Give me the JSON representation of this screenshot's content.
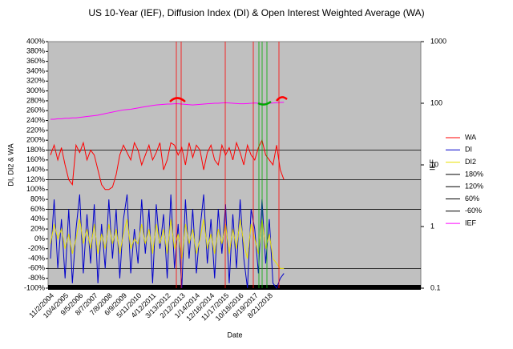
{
  "chart_data": {
    "type": "line",
    "title": "US 10-Year (IEF), Diffusion Index (DI) & Open Interest Weighted Average (WA)",
    "x_label": "Date",
    "y_label": "DI, DI2 & WA",
    "y2_label": "IEF",
    "categories": [
      "11/2/2004",
      null,
      null,
      null,
      "10/4/2005",
      null,
      null,
      null,
      "9/5/2006",
      null,
      null,
      null,
      "8/7/2007",
      null,
      null,
      null,
      "7/8/2008",
      null,
      null,
      null,
      "6/9/2009",
      null,
      null,
      null,
      "5/11/2010",
      null,
      null,
      null,
      "4/12/2011",
      null,
      null,
      null,
      "3/13/2012",
      null,
      null,
      null,
      "2/12/2013",
      null,
      null,
      null,
      "1/14/2014",
      null,
      null,
      null,
      "12/16/2014",
      null,
      null,
      null,
      "11/17/2015",
      null,
      null,
      null,
      "10/18/2016",
      null,
      null,
      null,
      "9/19/2017",
      null,
      null,
      null,
      "8/21/2018",
      null,
      null,
      null,
      null
    ],
    "series": [
      {
        "name": "WA",
        "color": "#ff0000",
        "values": [
          170,
          190,
          160,
          185,
          150,
          120,
          110,
          190,
          175,
          195,
          160,
          180,
          170,
          140,
          110,
          100,
          100,
          105,
          130,
          170,
          190,
          175,
          160,
          195,
          180,
          150,
          170,
          190,
          160,
          175,
          195,
          140,
          160,
          195,
          190,
          170,
          185,
          150,
          195,
          165,
          190,
          180,
          140,
          175,
          190,
          160,
          150,
          190,
          170,
          185,
          160,
          195,
          175,
          150,
          190,
          170,
          160,
          185,
          200,
          170,
          160,
          150,
          190,
          140,
          120
        ]
      },
      {
        "name": "DI",
        "color": "#0000cc",
        "values": [
          -40,
          80,
          -60,
          40,
          -80,
          60,
          -90,
          20,
          90,
          -70,
          50,
          -50,
          70,
          -90,
          30,
          -60,
          80,
          -40,
          60,
          -80,
          40,
          90,
          -70,
          20,
          -50,
          80,
          -30,
          60,
          -90,
          70,
          -20,
          50,
          -80,
          90,
          -60,
          30,
          -100,
          80,
          -40,
          60,
          -70,
          20,
          90,
          -50,
          40,
          -80,
          60,
          -30,
          70,
          -90,
          50,
          -60,
          80,
          -40,
          -100,
          60,
          20,
          -70,
          80,
          -50,
          40,
          -90,
          -100,
          -80,
          -70
        ]
      },
      {
        "name": "DI2",
        "color": "#e8e000",
        "values": [
          -10,
          30,
          0,
          20,
          -20,
          10,
          -30,
          0,
          40,
          -10,
          20,
          -20,
          30,
          -30,
          10,
          -20,
          30,
          -10,
          20,
          -30,
          10,
          40,
          -20,
          0,
          -10,
          30,
          -10,
          20,
          -30,
          30,
          -10,
          20,
          -30,
          40,
          -20,
          10,
          -40,
          30,
          -10,
          20,
          -30,
          0,
          40,
          -20,
          10,
          -30,
          20,
          -10,
          30,
          -30,
          20,
          -20,
          40,
          -10,
          -40,
          30,
          0,
          -30,
          40,
          -20,
          10,
          -40,
          -50,
          -60,
          -60
        ]
      },
      {
        "name": "IEF",
        "color": "#ff00ff",
        "axis": "y2",
        "values": [
          55,
          55,
          56,
          56,
          57,
          57,
          58,
          58,
          59,
          60,
          61,
          62,
          63,
          64,
          66,
          68,
          70,
          72,
          74,
          76,
          78,
          79,
          80,
          82,
          84,
          86,
          88,
          90,
          92,
          94,
          95,
          96,
          97,
          97,
          98,
          98,
          97,
          96,
          95,
          94,
          95,
          96,
          97,
          98,
          99,
          100,
          100,
          101,
          102,
          101,
          100,
          99,
          98,
          98,
          99,
          100,
          101,
          100,
          99,
          99,
          100,
          101,
          102,
          103,
          104
        ]
      }
    ],
    "reference_lines": [
      {
        "name": "180%",
        "value": 180,
        "color": "#000000"
      },
      {
        "name": "120%",
        "value": 120,
        "color": "#000000"
      },
      {
        "name": "60%",
        "value": 60,
        "color": "#000000"
      },
      {
        "name": "-60%",
        "value": -60,
        "color": "#000000"
      }
    ],
    "legend_order": [
      "WA",
      "DI",
      "DI2",
      "180%",
      "120%",
      "60%",
      "-60%",
      "IEF"
    ],
    "ylim": [
      -100,
      400
    ],
    "yticks": [
      {
        "value": -100,
        "label": "-100%"
      },
      {
        "value": -80,
        "label": "-80%"
      },
      {
        "value": -60,
        "label": "-60%"
      },
      {
        "value": -40,
        "label": "-40%"
      },
      {
        "value": -20,
        "label": "-20%"
      },
      {
        "value": 0,
        "label": "0%"
      },
      {
        "value": 20,
        "label": "20%"
      },
      {
        "value": 40,
        "label": "40%"
      },
      {
        "value": 60,
        "label": "60%"
      },
      {
        "value": 80,
        "label": "80%"
      },
      {
        "value": 100,
        "label": "100%"
      },
      {
        "value": 120,
        "label": "120%"
      },
      {
        "value": 140,
        "label": "140%"
      },
      {
        "value": 160,
        "label": "160%"
      },
      {
        "value": 180,
        "label": "180%"
      },
      {
        "value": 200,
        "label": "200%"
      },
      {
        "value": 220,
        "label": "220%"
      },
      {
        "value": 240,
        "label": "240%"
      },
      {
        "value": 260,
        "label": "260%"
      },
      {
        "value": 280,
        "label": "280%"
      },
      {
        "value": 300,
        "label": "300%"
      },
      {
        "value": 320,
        "label": "320%"
      },
      {
        "value": 340,
        "label": "340%"
      },
      {
        "value": 360,
        "label": "360%"
      },
      {
        "value": 380,
        "label": "380%"
      },
      {
        "value": 400,
        "label": "400%"
      }
    ],
    "y2lim": [
      0.1,
      1000
    ],
    "y2ticks": [
      0.1,
      1,
      10,
      100,
      1000
    ],
    "y2_log": true,
    "legend": "right"
  }
}
